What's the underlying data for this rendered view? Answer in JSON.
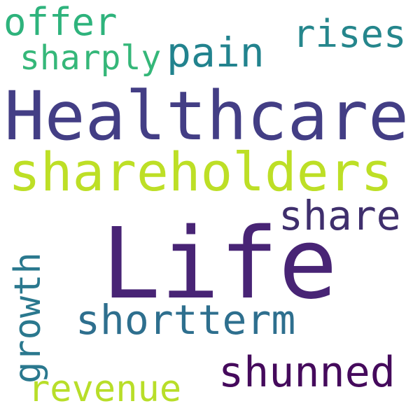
{
  "words": {
    "life": {
      "text": "Life",
      "color": "#482475"
    },
    "healthcare": {
      "text": "Healthcare",
      "color": "#433e85"
    },
    "shareholders": {
      "text": "shareholders",
      "color": "#bddf26"
    },
    "shortterm": {
      "text": "shortterm",
      "color": "#2e6f8e"
    },
    "shunned": {
      "text": "shunned",
      "color": "#450a5c"
    },
    "share": {
      "text": "share",
      "color": "#3f2f6d"
    },
    "offer": {
      "text": "offer",
      "color": "#2eb37c"
    },
    "pain": {
      "text": "pain",
      "color": "#22838e"
    },
    "rises": {
      "text": "rises",
      "color": "#25868c"
    },
    "sharply": {
      "text": "sharply",
      "color": "#35b779"
    },
    "revenue": {
      "text": "revenue",
      "color": "#b8de29"
    },
    "growth": {
      "text": "growth",
      "color": "#2a788e"
    }
  }
}
